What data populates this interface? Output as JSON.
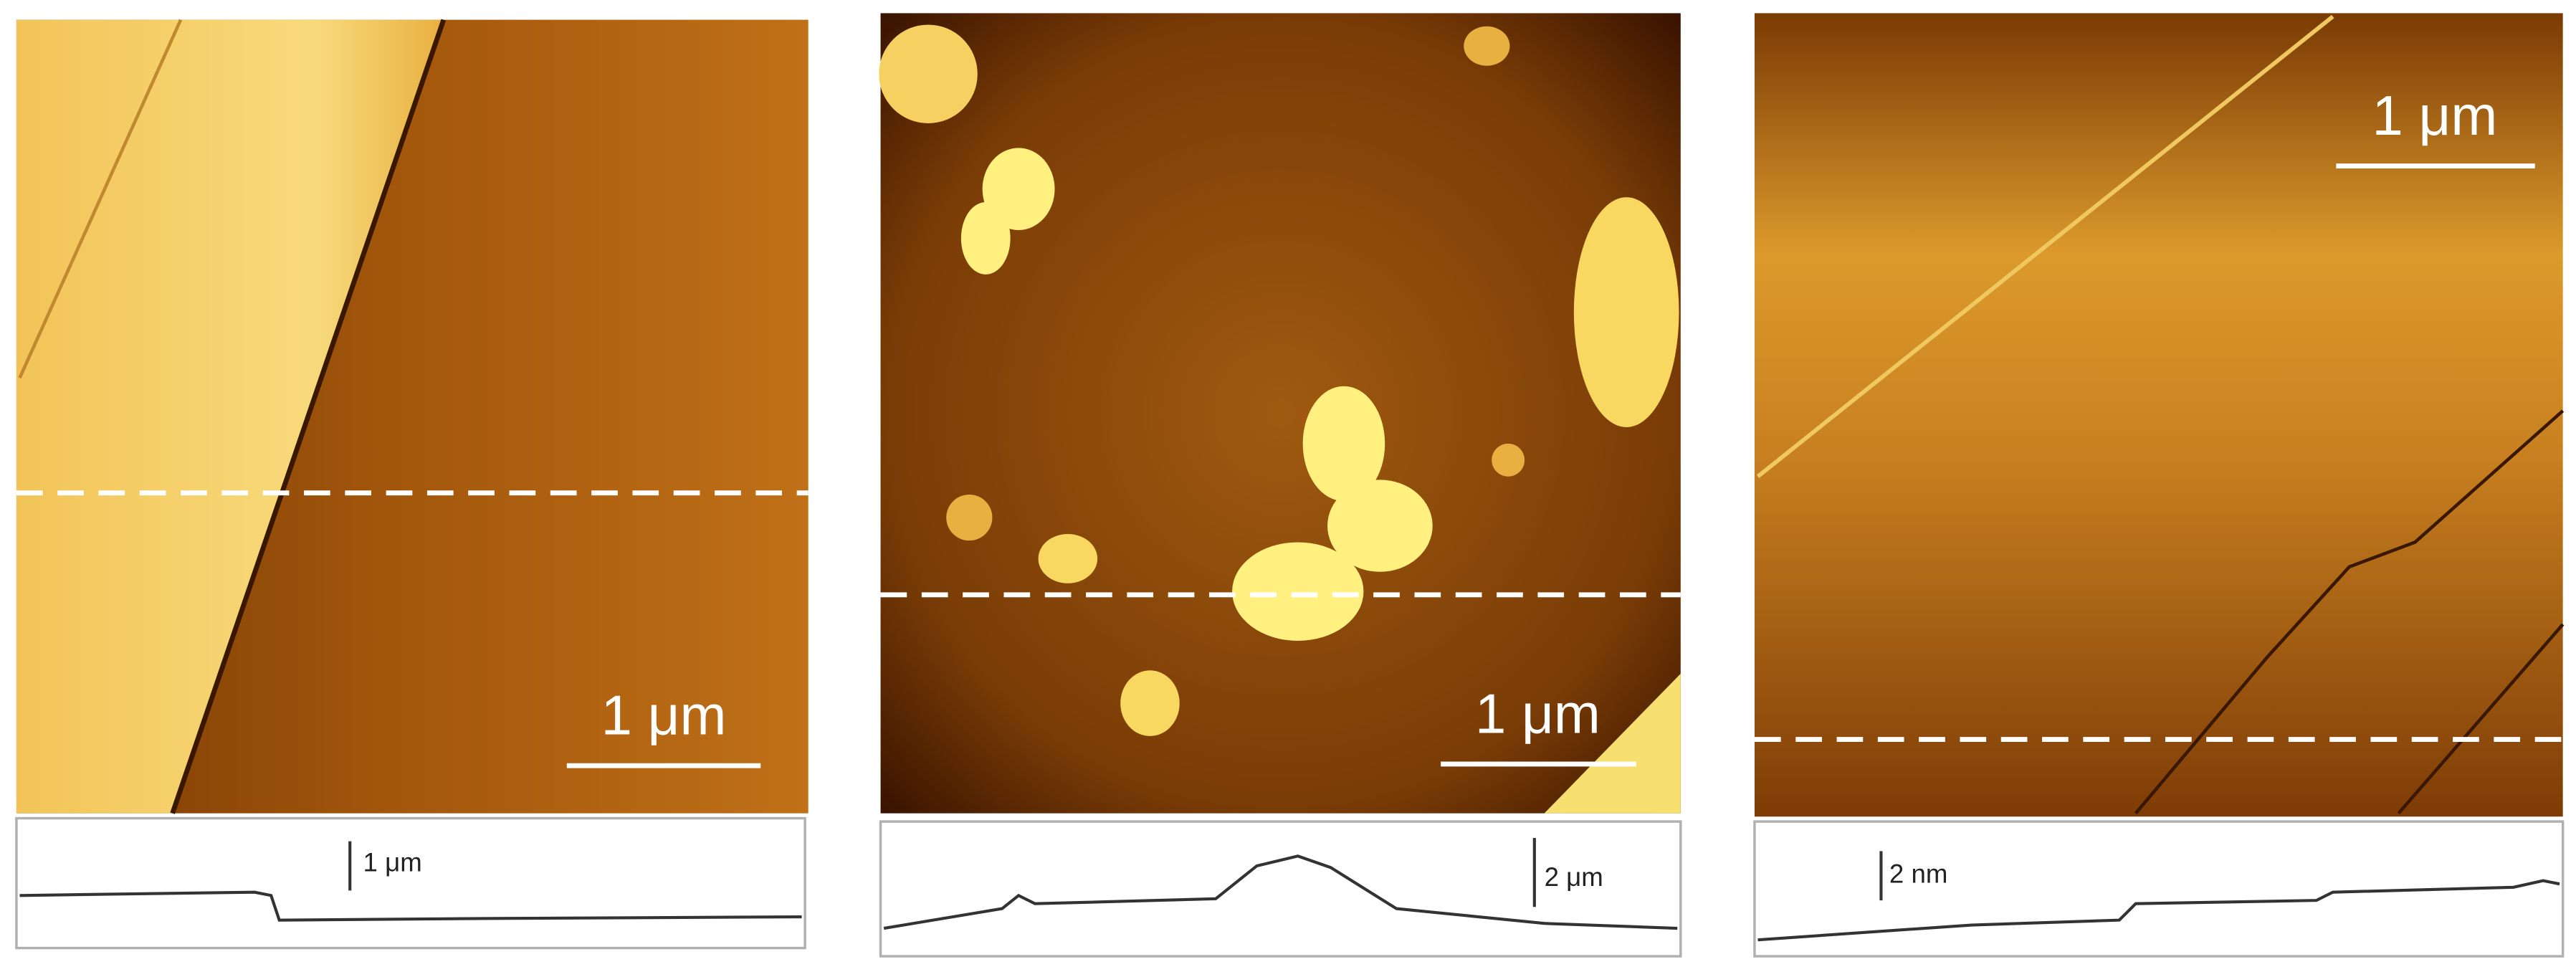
{
  "panels": [
    {
      "scale_bar": "1 μm",
      "profile_scale": "1 μm"
    },
    {
      "scale_bar": "1 μm",
      "profile_scale": "2 μm"
    },
    {
      "scale_bar": "1 μm",
      "profile_scale": "2 nm"
    }
  ]
}
